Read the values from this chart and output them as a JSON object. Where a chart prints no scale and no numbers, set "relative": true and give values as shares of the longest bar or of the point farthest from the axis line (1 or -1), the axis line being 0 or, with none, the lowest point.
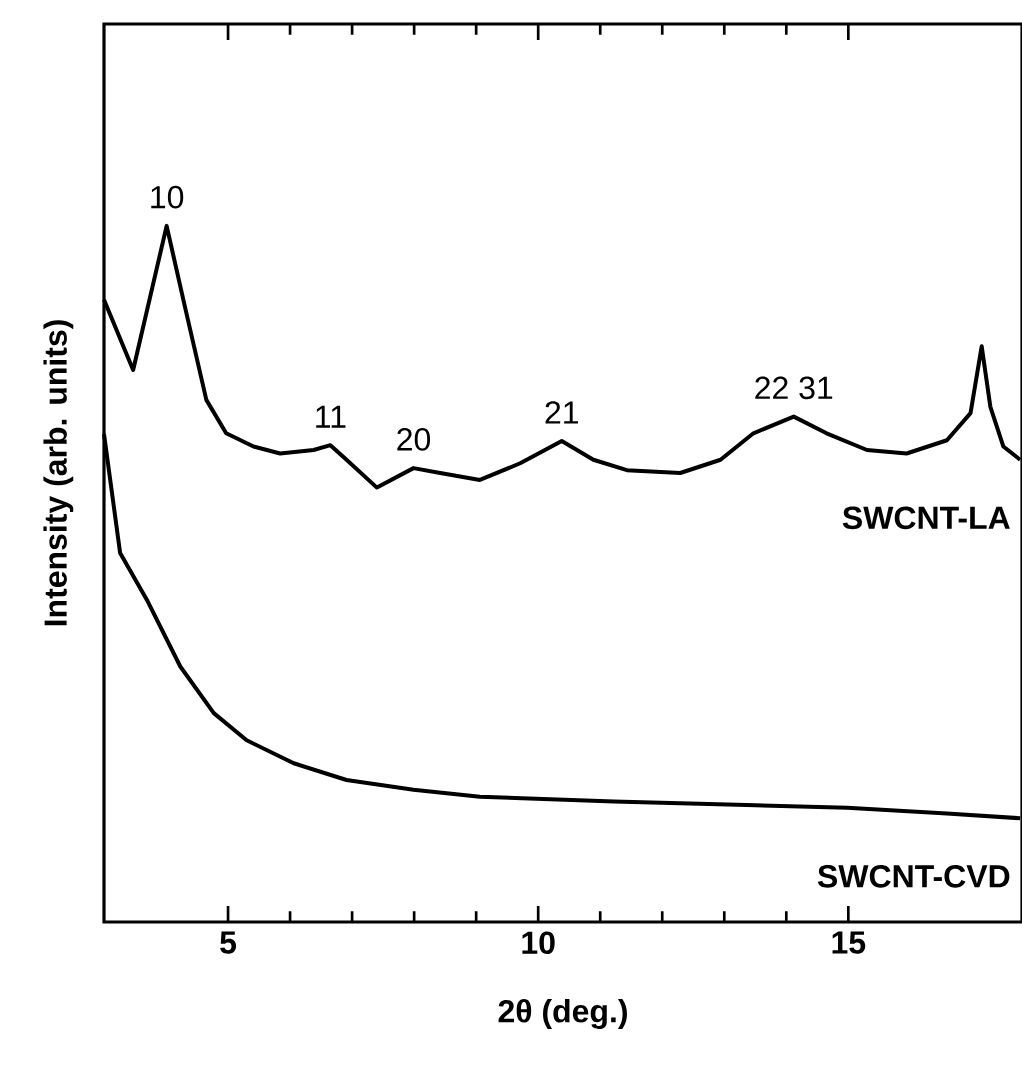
{
  "chart_data": {
    "type": "line",
    "relative": true,
    "xlabel": "2θ (deg.)",
    "ylabel": "Intensity (arb. units)",
    "xlim": [
      3,
      17.8
    ],
    "xticks": [
      5,
      10,
      15
    ],
    "grid": false,
    "marker": "none",
    "line_style": "solid",
    "annotations": [
      {
        "text": "10",
        "x": 4.01,
        "y": 1.0
      },
      {
        "text": "11",
        "x": 6.65,
        "y": 0.685
      },
      {
        "text": "20",
        "x": 7.99,
        "y": 0.652
      },
      {
        "text": "21",
        "x": 10.38,
        "y": 0.691
      },
      {
        "text": "22 31",
        "x": 14.12,
        "y": 0.726
      }
    ],
    "series": [
      {
        "name": "SWCNT-LA",
        "color": "#000000",
        "x": [
          3,
          3.47,
          4.01,
          4.33,
          4.65,
          4.97,
          5.41,
          5.84,
          6.38,
          6.65,
          6.91,
          7.4,
          7.99,
          8.42,
          9.06,
          9.71,
          10.38,
          10.89,
          11.43,
          12.29,
          12.94,
          13.47,
          14.12,
          14.65,
          15.3,
          15.94,
          16.59,
          16.97,
          17.15,
          17.29,
          17.5,
          17.77
        ],
        "values": [
          0.894,
          0.793,
          1.0,
          0.874,
          0.75,
          0.702,
          0.683,
          0.673,
          0.678,
          0.685,
          0.664,
          0.624,
          0.652,
          0.645,
          0.635,
          0.659,
          0.691,
          0.664,
          0.649,
          0.645,
          0.664,
          0.702,
          0.726,
          0.702,
          0.678,
          0.673,
          0.692,
          0.731,
          0.827,
          0.74,
          0.683,
          0.664
        ]
      },
      {
        "name": "SWCNT-CVD",
        "color": "#000000",
        "x": [
          3,
          3.26,
          3.69,
          4.23,
          4.77,
          5.3,
          6.06,
          6.91,
          7.99,
          9.06,
          11.22,
          13.36,
          14.98,
          16.59,
          17.77
        ],
        "values": [
          0.701,
          0.53,
          0.463,
          0.367,
          0.3,
          0.261,
          0.228,
          0.204,
          0.19,
          0.18,
          0.173,
          0.168,
          0.164,
          0.156,
          0.149
        ]
      }
    ]
  }
}
